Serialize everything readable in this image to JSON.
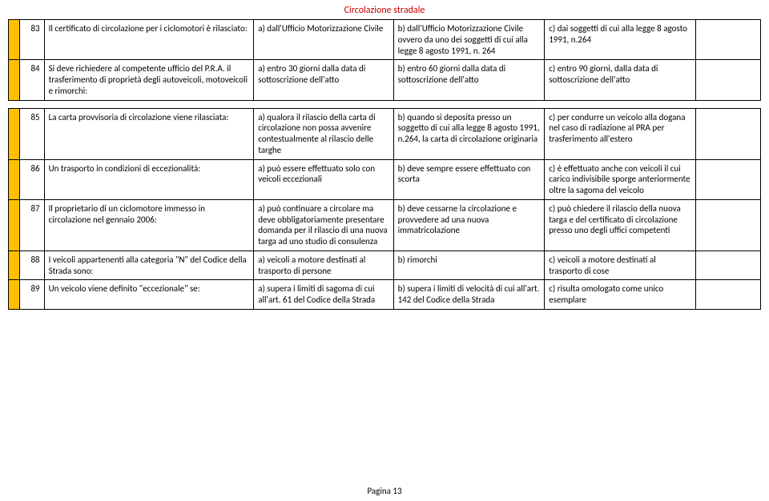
{
  "title": "Circolazione stradale",
  "footer": "Pagina 13",
  "colors": {
    "title_color": "#c00000",
    "answer_bg": "#ffc000",
    "border": "#000000",
    "background": "#ffffff",
    "text": "#000000"
  },
  "rows": [
    {
      "num": "83",
      "question": "Il certificato di circolazione per i ciclomotori è rilasciato:",
      "a": "a) dall'Ufficio Motorizzazione Civile",
      "b": "b) dall'Ufficio Motorizzazione Civile ovvero da uno dei soggetti di cui alla legge 8 agosto 1991, n. 264",
      "c": "c) dai soggetti di cui alla legge 8 agosto 1991, n.264",
      "d": ""
    },
    {
      "num": "84",
      "question": "Si deve richiedere al competente ufficio del P.R.A. il trasferimento di proprietà degli autoveicoli, motoveicoli e rimorchi:",
      "a": "a) entro 30 giorni dalla data di sottoscrizione dell'atto",
      "b": "b) entro 60 giorni dalla data di sottoscrizione dell'atto",
      "c": "c) entro 90 giorni, dalla data di sottoscrizione dell'atto",
      "d": ""
    },
    {
      "num": "85",
      "question": "La carta provvisoria di circolazione viene rilasciata:",
      "a": "a) qualora il rilascio della carta di circolazione non possa avvenire contestualmente al rilascio delle targhe",
      "b": "b) quando si deposita presso un soggetto di cui alla legge 8 agosto 1991, n.264, la carta di circolazione originaria",
      "c": "c) per condurre un veicolo alla dogana nel caso di radiazione al PRA per trasferimento all'estero",
      "d": ""
    },
    {
      "num": "86",
      "question": "Un trasporto in condizioni di eccezionalità:",
      "a": "a) può essere effettuato solo con veicoli eccezionali",
      "b": "b) deve sempre essere effettuato con scorta",
      "c": "c) è effettuato anche con veicoli il cui carico indivisibile sporge anteriormente oltre la sagoma del veicolo",
      "d": ""
    },
    {
      "num": "87",
      "question": "Il proprietario di un ciclomotore immesso in circolazione nel gennaio 2006:",
      "a": "a) può continuare a circolare ma deve obbligatoriamente presentare domanda per il rilascio di una nuova targa ad uno studio di consulenza",
      "b": "b) deve cessarne la circolazione e provvedere ad una nuova immatricolazione",
      "c": "c) può chiedere il rilascio della nuova targa e del certificato di circolazione presso uno degli uffici competenti",
      "d": ""
    },
    {
      "num": "88",
      "question": "I veicoli appartenenti alla categoria \"N\" del Codice della Strada sono:",
      "a": "a)  veicoli a motore destinati al trasporto di persone",
      "b": "b) rimorchi",
      "c": "c) veicoli a motore destinati al trasporto di cose",
      "d": ""
    },
    {
      "num": "89",
      "question": "Un veicolo viene definito \"eccezionale\" se:",
      "a": "a) supera i limiti di sagoma di cui all'art. 61 del Codice della Strada",
      "b": "b) supera i limiti di velocità di cui all'art. 142 del Codice della Strada",
      "c": "c) risulta omologato come unico esemplare",
      "d": ""
    }
  ]
}
